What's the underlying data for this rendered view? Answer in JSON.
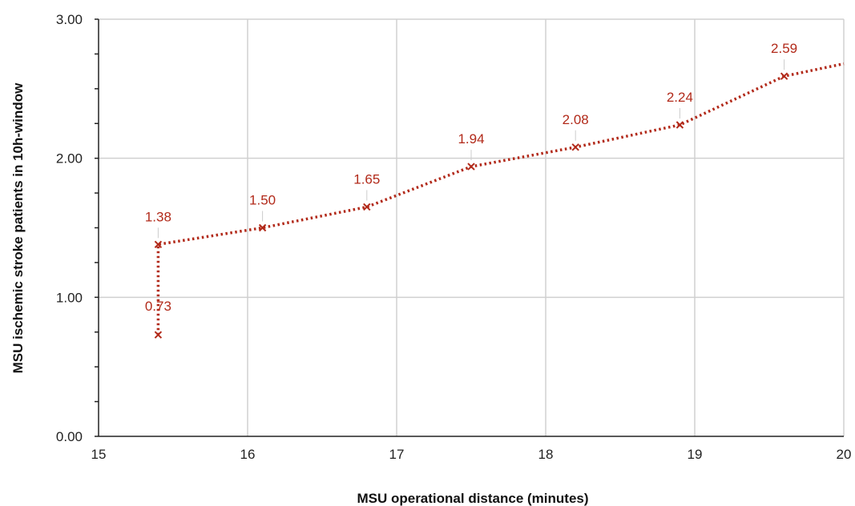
{
  "chart_data": {
    "type": "line",
    "xlabel": "MSU operational distance (minutes)",
    "ylabel": "MSU ischemic stroke patients in 10h-window",
    "xlim": [
      15,
      20
    ],
    "ylim": [
      0,
      3
    ],
    "x_ticks": [
      "15",
      "16",
      "17",
      "18",
      "19",
      "20"
    ],
    "y_ticks": [
      "0.00",
      "1.00",
      "2.00",
      "3.00"
    ],
    "grid": true,
    "line_style": "dotted",
    "marker": "x",
    "series_color": "#b22a1a",
    "grid_color": "#d0d0d0",
    "series": [
      {
        "points": [
          {
            "x": 15.4,
            "y": 0.73,
            "label": "0.73"
          },
          {
            "x": 15.4,
            "y": 1.38,
            "label": "1.38"
          },
          {
            "x": 16.1,
            "y": 1.5,
            "label": "1.50"
          },
          {
            "x": 16.8,
            "y": 1.65,
            "label": "1.65"
          },
          {
            "x": 17.5,
            "y": 1.94,
            "label": "1.94"
          },
          {
            "x": 18.2,
            "y": 2.08,
            "label": "2.08"
          },
          {
            "x": 18.9,
            "y": 2.24,
            "label": "2.24"
          },
          {
            "x": 19.6,
            "y": 2.59,
            "label": "2.59"
          },
          {
            "x": 20.0,
            "y": 2.68
          }
        ]
      }
    ]
  }
}
